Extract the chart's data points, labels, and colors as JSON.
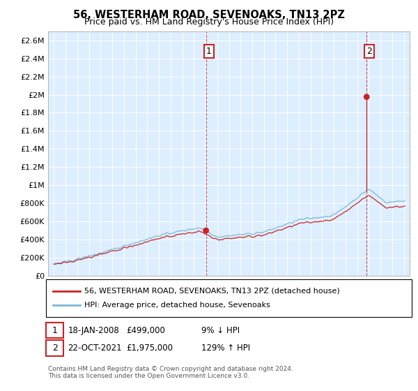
{
  "title": "56, WESTERHAM ROAD, SEVENOAKS, TN13 2PZ",
  "subtitle": "Price paid vs. HM Land Registry's House Price Index (HPI)",
  "legend_line1": "56, WESTERHAM ROAD, SEVENOAKS, TN13 2PZ (detached house)",
  "legend_line2": "HPI: Average price, detached house, Sevenoaks",
  "annotation1_label": "1",
  "annotation1_date": "18-JAN-2008",
  "annotation1_price": "£499,000",
  "annotation1_hpi": "9% ↓ HPI",
  "annotation2_label": "2",
  "annotation2_date": "22-OCT-2021",
  "annotation2_price": "£1,975,000",
  "annotation2_hpi": "129% ↑ HPI",
  "footnote": "Contains HM Land Registry data © Crown copyright and database right 2024.\nThis data is licensed under the Open Government Licence v3.0.",
  "sale1_year": 2008.04,
  "sale1_price": 499000,
  "sale2_year": 2021.81,
  "sale2_price": 1975000,
  "hpi_color": "#7bb8d8",
  "price_color": "#cc2222",
  "sale_dot_color": "#cc2222",
  "ylim_min": 0,
  "ylim_max": 2700000,
  "yticks": [
    0,
    200000,
    400000,
    600000,
    800000,
    1000000,
    1200000,
    1400000,
    1600000,
    1800000,
    2000000,
    2200000,
    2400000,
    2600000
  ],
  "ytick_labels": [
    "£0",
    "£200K",
    "£400K",
    "£600K",
    "£800K",
    "£1M",
    "£1.2M",
    "£1.4M",
    "£1.6M",
    "£1.8M",
    "£2M",
    "£2.2M",
    "£2.4M",
    "£2.6M"
  ],
  "xlim_min": 1994.5,
  "xlim_max": 2025.5,
  "plot_bg_color": "#ddeeff"
}
